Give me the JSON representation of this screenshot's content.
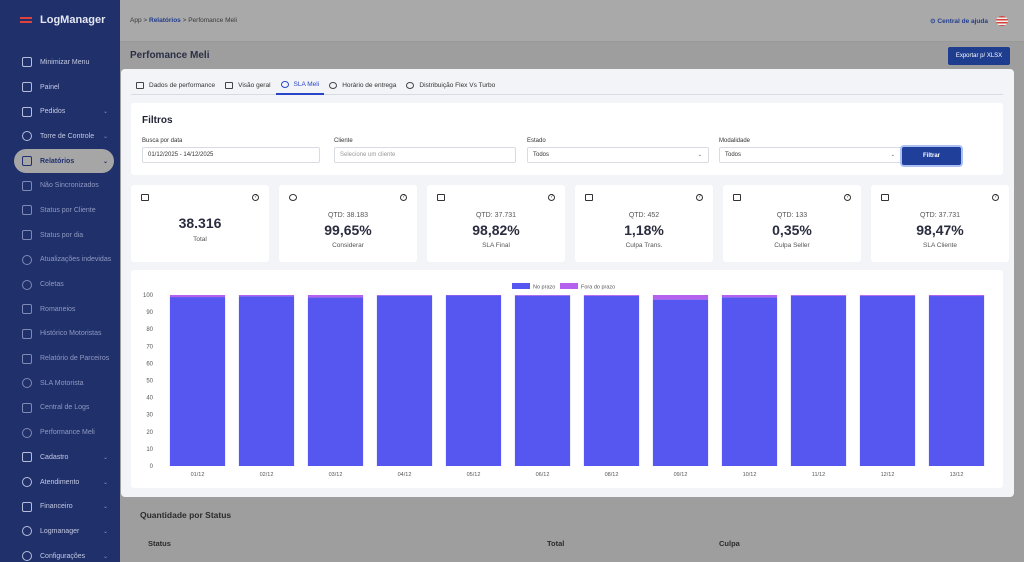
{
  "app": {
    "name": "LogManager"
  },
  "sidebar": {
    "items": [
      {
        "label": "Minimizar Menu",
        "icon": "collapse-icon",
        "chevron": false
      },
      {
        "label": "Painel",
        "icon": "home-icon",
        "chevron": false
      },
      {
        "label": "Pedidos",
        "icon": "send-icon",
        "chevron": true
      },
      {
        "label": "Torre de Controle",
        "icon": "target-icon",
        "chevron": true
      },
      {
        "label": "Relatórios",
        "icon": "clipboard-icon",
        "chevron": true,
        "active": true
      },
      {
        "label": "Não Sincronizados",
        "icon": "link-icon",
        "sub": true
      },
      {
        "label": "Status por Cliente",
        "icon": "box-icon",
        "sub": true
      },
      {
        "label": "Status por dia",
        "icon": "bar-chart-icon",
        "sub": true
      },
      {
        "label": "Atualizações indevidas",
        "icon": "clock-icon",
        "sub": true
      },
      {
        "label": "Coletas",
        "icon": "pie-icon",
        "sub": true
      },
      {
        "label": "Romaneios",
        "icon": "tag-icon",
        "sub": true
      },
      {
        "label": "Histórico Motoristas",
        "icon": "truck-icon",
        "sub": true
      },
      {
        "label": "Relatório de Parceiros",
        "icon": "user-icon",
        "sub": true
      },
      {
        "label": "SLA Motorista",
        "icon": "clock-icon",
        "sub": true
      },
      {
        "label": "Central de Logs",
        "icon": "database-icon",
        "sub": true
      },
      {
        "label": "Performance Meli",
        "icon": "pie-icon",
        "sub": true
      },
      {
        "label": "Cadastro",
        "icon": "truck-icon",
        "chevron": true
      },
      {
        "label": "Atendimento",
        "icon": "chat-icon",
        "chevron": true
      },
      {
        "label": "Financeiro",
        "icon": "card-icon",
        "chevron": true
      },
      {
        "label": "Logmanager",
        "icon": "gear-icon",
        "chevron": true
      },
      {
        "label": "Configurações",
        "icon": "settings-icon",
        "chevron": true
      }
    ]
  },
  "topbar": {
    "breadcrumb": {
      "root": "App",
      "section": "Relatórios",
      "current": "Perfomance Meli"
    },
    "help_label": "Central de ajuda"
  },
  "page": {
    "title": "Perfomance Meli",
    "export_label": "Exportar p/ XLSX"
  },
  "tabs": [
    {
      "label": "Dados de performance",
      "icon": "list-icon"
    },
    {
      "label": "Visão geral",
      "icon": "list-icon"
    },
    {
      "label": "SLA Meli",
      "icon": "target-icon",
      "active": true
    },
    {
      "label": "Horário de entrega",
      "icon": "clock-icon"
    },
    {
      "label": "Distribuição Flex Vs Turbo",
      "icon": "clock-icon"
    }
  ],
  "filters": {
    "title": "Filtros",
    "date": {
      "label": "Busca por data",
      "value": "01/12/2025 - 14/12/2025"
    },
    "client": {
      "label": "Cliente",
      "placeholder": "Selecione um cliente"
    },
    "state": {
      "label": "Estado",
      "value": "Todos"
    },
    "mode": {
      "label": "Modalidade",
      "value": "Todos"
    },
    "submit_label": "Filtrar"
  },
  "cards": [
    {
      "icon": "list-icon",
      "qtd": "",
      "value": "38.316",
      "label": "Total"
    },
    {
      "icon": "check-circle-icon",
      "qtd": "QTD: 38.183",
      "value": "99,65%",
      "label": "Considerar"
    },
    {
      "icon": "line-chart-icon",
      "qtd": "QTD: 37.731",
      "value": "98,82%",
      "label": "SLA Final"
    },
    {
      "icon": "package-icon",
      "qtd": "QTD: 452",
      "value": "1,18%",
      "label": "Culpa Trans."
    },
    {
      "icon": "package-x-icon",
      "qtd": "QTD: 133",
      "value": "0,35%",
      "label": "Culpa Seller"
    },
    {
      "icon": "briefcase-icon",
      "qtd": "QTD: 37.731",
      "value": "98,47%",
      "label": "SLA Cliente"
    }
  ],
  "chart_data": {
    "type": "bar",
    "stacked": true,
    "categories": [
      "01/12",
      "02/12",
      "03/12",
      "04/12",
      "05/12",
      "06/12",
      "08/12",
      "09/12",
      "10/12",
      "11/12",
      "12/12",
      "13/12"
    ],
    "series": [
      {
        "name": "No prazo",
        "color": "#5656f0",
        "values": [
          98.8,
          99.3,
          98.6,
          99.6,
          99.7,
          99.6,
          99.5,
          97.3,
          98.7,
          99.5,
          99.5,
          99.4
        ]
      },
      {
        "name": "Fora do prazo",
        "color": "#b461ee",
        "values": [
          1.2,
          0.7,
          1.4,
          0.4,
          0.3,
          0.4,
          0.5,
          2.7,
          1.3,
          0.5,
          0.5,
          0.6
        ]
      }
    ],
    "ylim": [
      0,
      100
    ],
    "yticks": [
      0,
      10,
      20,
      30,
      40,
      50,
      60,
      70,
      80,
      90,
      100
    ],
    "legend": "top-center",
    "grid": false
  },
  "status_table": {
    "title": "Quantidade por Status",
    "columns": [
      "Status",
      "Total",
      "Culpa"
    ]
  }
}
